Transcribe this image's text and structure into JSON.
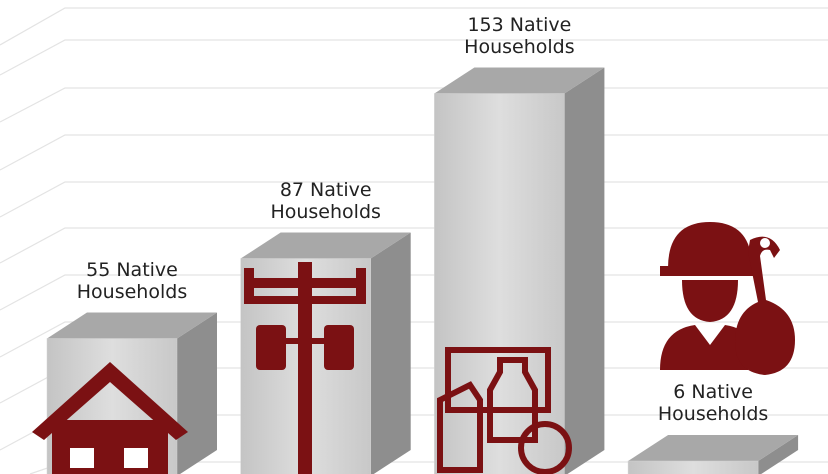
{
  "chart_data": {
    "type": "bar3d",
    "categories": [
      null,
      null,
      null,
      null
    ],
    "values": [
      55,
      87,
      153,
      6
    ],
    "value_labels": [
      "55 Native Households",
      "87 Native Households",
      "153 Native Households",
      "6 Native Households"
    ],
    "ylim": [
      0,
      190
    ],
    "color": "#d2d2d2",
    "icon_color": "#7b1113"
  }
}
